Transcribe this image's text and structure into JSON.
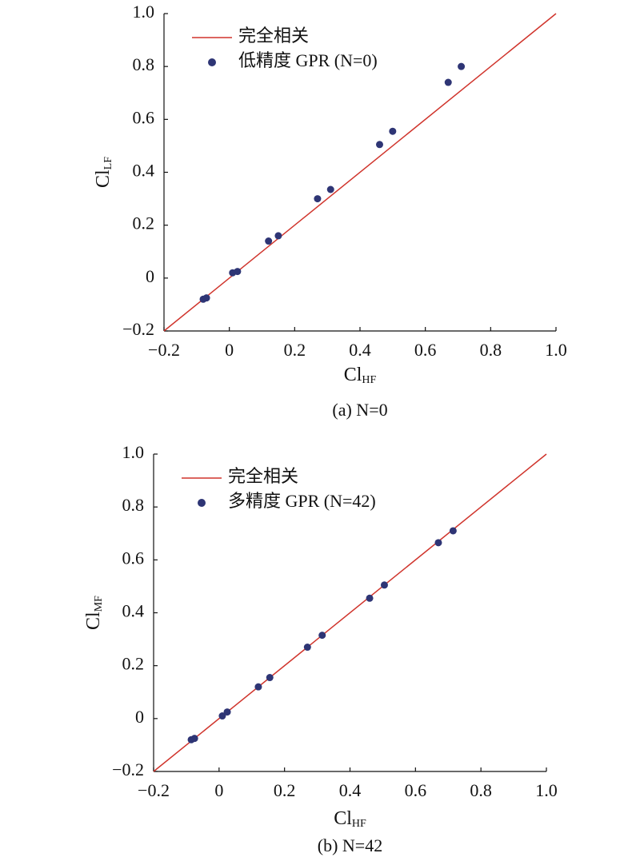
{
  "chart_data": [
    {
      "type": "scatter",
      "caption": "(a) N=0",
      "xlabel": "Cl",
      "xlabel_subscript": "HF",
      "ylabel": "Cl",
      "ylabel_subscript": "LF",
      "xlim": [
        -0.2,
        1.0
      ],
      "ylim": [
        -0.2,
        1.0
      ],
      "xticks": [
        {
          "value": -0.2,
          "label": "−0.2"
        },
        0,
        0.2,
        0.4,
        0.6,
        0.8,
        {
          "value": 1.0,
          "label": "1.0"
        }
      ],
      "yticks": [
        {
          "value": -0.2,
          "label": "−0.2"
        },
        0,
        0.2,
        0.4,
        0.6,
        0.8,
        {
          "value": 1.0,
          "label": "1.0"
        }
      ],
      "legend": "upper left",
      "series": [
        {
          "name": "完全相关",
          "type": "line",
          "color": "#d0342c",
          "x": [
            -0.2,
            1.0
          ],
          "values": [
            -0.2,
            1.0
          ]
        },
        {
          "name": "低精度 GPR (N=0)",
          "type": "scatter",
          "color": "#2e3575",
          "x": [
            -0.08,
            -0.07,
            0.01,
            0.025,
            0.12,
            0.15,
            0.27,
            0.31,
            0.46,
            0.5,
            0.67,
            0.71
          ],
          "values": [
            -0.08,
            -0.075,
            0.02,
            0.025,
            0.14,
            0.16,
            0.3,
            0.335,
            0.505,
            0.555,
            0.74,
            0.8
          ]
        }
      ]
    },
    {
      "type": "scatter",
      "caption": "(b) N=42",
      "xlabel": "Cl",
      "xlabel_subscript": "HF",
      "ylabel": "Cl",
      "ylabel_subscript": "MF",
      "xlim": [
        -0.2,
        1.0
      ],
      "ylim": [
        -0.2,
        1.0
      ],
      "xticks": [
        {
          "value": -0.2,
          "label": "−0.2"
        },
        0,
        0.2,
        0.4,
        0.6,
        0.8,
        {
          "value": 1.0,
          "label": "1.0"
        }
      ],
      "yticks": [
        {
          "value": -0.2,
          "label": "−0.2"
        },
        0,
        0.2,
        0.4,
        0.6,
        0.8,
        {
          "value": 1.0,
          "label": "1.0"
        }
      ],
      "legend": "upper left",
      "series": [
        {
          "name": "完全相关",
          "type": "line",
          "color": "#d0342c",
          "x": [
            -0.2,
            1.0
          ],
          "values": [
            -0.2,
            1.0
          ]
        },
        {
          "name": "多精度 GPR (N=42)",
          "type": "scatter",
          "color": "#2e3575",
          "x": [
            -0.085,
            -0.075,
            0.01,
            0.025,
            0.12,
            0.155,
            0.27,
            0.315,
            0.46,
            0.505,
            0.67,
            0.715
          ],
          "values": [
            -0.08,
            -0.075,
            0.01,
            0.025,
            0.12,
            0.155,
            0.27,
            0.315,
            0.455,
            0.505,
            0.665,
            0.71
          ]
        }
      ]
    }
  ]
}
